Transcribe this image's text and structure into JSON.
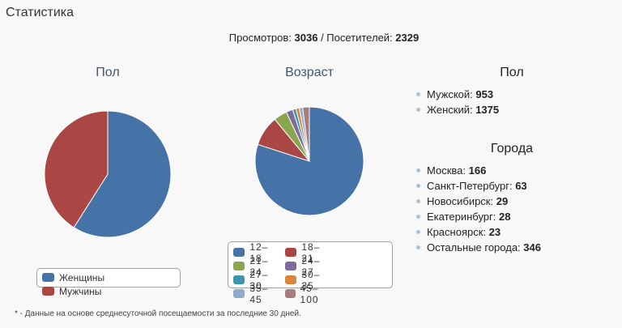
{
  "header": {
    "title": "Статистика"
  },
  "summary": {
    "views_label": "Просмотров:",
    "views": 3036,
    "separator": "/ Посетителей:",
    "visitors": 2329
  },
  "chart_data": [
    {
      "type": "pie",
      "title": "Пол",
      "categories": [
        "Женщины",
        "Мужчины"
      ],
      "values": [
        59,
        41
      ],
      "colors": [
        "#4572a7",
        "#aa4643"
      ]
    },
    {
      "type": "pie",
      "title": "Возраст",
      "categories": [
        "12–18",
        "18–21",
        "21–24",
        "24–27",
        "27–30",
        "30–35",
        "35–45",
        "45–100"
      ],
      "values": [
        80,
        9,
        4,
        2,
        1,
        1,
        1,
        2
      ],
      "colors": [
        "#4572a7",
        "#aa4643",
        "#89a54e",
        "#80699b",
        "#3d96ae",
        "#db843d",
        "#92a8cd",
        "#a47d7c"
      ]
    }
  ],
  "gender": {
    "title": "Пол",
    "items": [
      {
        "label": "Мужской:",
        "value": 953
      },
      {
        "label": "Женский:",
        "value": 1375
      }
    ]
  },
  "cities": {
    "title": "Города",
    "items": [
      {
        "label": "Москва:",
        "value": 166
      },
      {
        "label": "Санкт-Петербург:",
        "value": 63
      },
      {
        "label": "Новосибирск:",
        "value": 29
      },
      {
        "label": "Екатеринбург:",
        "value": 28
      },
      {
        "label": "Красноярск:",
        "value": 23
      },
      {
        "label": "Остальные города:",
        "value": 346
      }
    ]
  },
  "footnote": "* - Данные на основе среднесуточной посещаемости за последние 30 дней."
}
